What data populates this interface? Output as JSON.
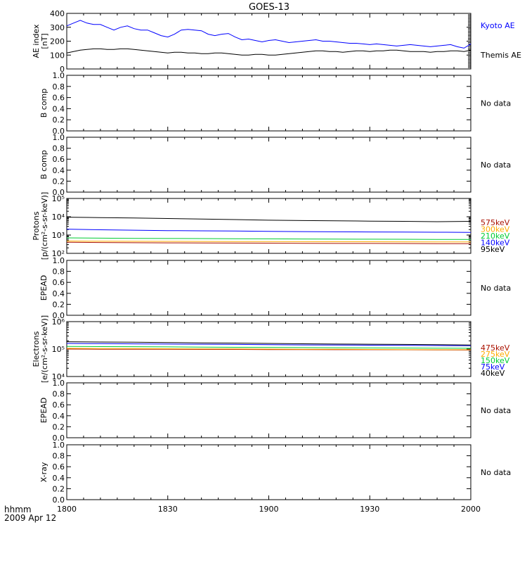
{
  "title": "GOES-13",
  "footer": {
    "units_label": "hhmm",
    "date_label": "2009 Apr 12"
  },
  "time_axis": {
    "ticks": [
      "1800",
      "1830",
      "1900",
      "1930",
      "2000"
    ],
    "range_minutes": [
      0,
      120
    ]
  },
  "no_data_text": "No data",
  "chart_data": [
    {
      "type": "line",
      "ylabel": [
        "AE index",
        "[nT]"
      ],
      "ylim": [
        0,
        400
      ],
      "y_ticks": [
        "0",
        "100",
        "200",
        "300",
        "400"
      ],
      "x_minutes": [
        0,
        2,
        4,
        6,
        8,
        10,
        12,
        14,
        16,
        18,
        20,
        22,
        24,
        26,
        28,
        30,
        32,
        34,
        36,
        38,
        40,
        42,
        44,
        46,
        48,
        50,
        52,
        54,
        56,
        58,
        60,
        62,
        64,
        66,
        68,
        70,
        72,
        74,
        76,
        78,
        80,
        82,
        84,
        86,
        88,
        90,
        92,
        94,
        96,
        98,
        100,
        102,
        104,
        106,
        108,
        110,
        112,
        114,
        116,
        118,
        120
      ],
      "series": [
        {
          "name": "Kyoto AE",
          "color": "#0000ff",
          "values": [
            310,
            330,
            350,
            330,
            320,
            320,
            300,
            280,
            300,
            310,
            290,
            280,
            280,
            260,
            240,
            230,
            250,
            280,
            285,
            280,
            275,
            250,
            240,
            250,
            255,
            230,
            210,
            215,
            205,
            195,
            205,
            210,
            200,
            190,
            195,
            200,
            205,
            210,
            200,
            200,
            195,
            190,
            185,
            185,
            180,
            175,
            180,
            175,
            170,
            165,
            170,
            175,
            170,
            165,
            160,
            165,
            170,
            175,
            160,
            150,
            180
          ]
        },
        {
          "name": "Themis AE",
          "color": "#000000",
          "values": [
            115,
            125,
            135,
            140,
            145,
            145,
            140,
            140,
            145,
            145,
            140,
            135,
            130,
            125,
            120,
            115,
            120,
            120,
            115,
            115,
            110,
            110,
            115,
            115,
            110,
            105,
            100,
            100,
            105,
            105,
            100,
            100,
            105,
            110,
            115,
            120,
            125,
            130,
            130,
            125,
            125,
            120,
            125,
            130,
            130,
            125,
            130,
            130,
            135,
            135,
            130,
            125,
            125,
            125,
            120,
            125,
            125,
            130,
            130,
            125,
            135
          ]
        }
      ]
    },
    {
      "type": "line",
      "ylabel": [
        "B comp"
      ],
      "ylim": [
        0,
        1
      ],
      "y_ticks": [
        "0.0",
        "0.2",
        "0.4",
        "0.6",
        "0.8",
        "1.0"
      ],
      "no_data": true
    },
    {
      "type": "line",
      "ylabel": [
        "B comp"
      ],
      "ylim": [
        0,
        1
      ],
      "y_ticks": [
        "0.0",
        "0.2",
        "0.4",
        "0.6",
        "0.8",
        "1.0"
      ],
      "no_data": true
    },
    {
      "type": "line",
      "ylabel": [
        "Protons",
        "[p/(cm²-s-sr-keV)]"
      ],
      "yscale": "log",
      "ylim": [
        100,
        100000
      ],
      "y_ticks": [
        "10²",
        "10³",
        "10⁴",
        "10⁵"
      ],
      "x_minutes": [
        0,
        10,
        20,
        30,
        40,
        50,
        60,
        70,
        80,
        90,
        100,
        110,
        120
      ],
      "series": [
        {
          "name": "575keV",
          "color": "#aa1100",
          "values": [
            400,
            390,
            380,
            375,
            370,
            365,
            360,
            355,
            350,
            348,
            345,
            340,
            340
          ]
        },
        {
          "name": "300keV",
          "color": "#ffaa00",
          "values": [
            470,
            460,
            455,
            450,
            445,
            440,
            438,
            435,
            432,
            430,
            428,
            425,
            425
          ]
        },
        {
          "name": "210keV",
          "color": "#00cc33",
          "values": [
            700,
            680,
            660,
            650,
            640,
            630,
            620,
            610,
            600,
            595,
            590,
            580,
            580
          ]
        },
        {
          "name": "140keV",
          "color": "#0000ff",
          "values": [
            2100,
            1950,
            1850,
            1750,
            1700,
            1650,
            1600,
            1550,
            1500,
            1480,
            1450,
            1420,
            1400
          ]
        },
        {
          "name": "95keV",
          "color": "#000000",
          "values": [
            9500,
            9000,
            8500,
            8000,
            7500,
            7000,
            6500,
            6200,
            6000,
            5800,
            5600,
            5400,
            5600
          ]
        }
      ]
    },
    {
      "type": "line",
      "ylabel": [
        "EPEAD"
      ],
      "ylim": [
        0,
        1
      ],
      "y_ticks": [
        "0.0",
        "0.2",
        "0.4",
        "0.6",
        "0.8",
        "1.0"
      ],
      "no_data": true
    },
    {
      "type": "line",
      "ylabel": [
        "Electrons",
        "[e/(cm²-s-sr-keV)]"
      ],
      "yscale": "log",
      "ylim": [
        10000,
        1000000
      ],
      "y_ticks": [
        "10⁴",
        "10⁵",
        "10⁶"
      ],
      "x_minutes": [
        0,
        10,
        20,
        30,
        40,
        50,
        60,
        70,
        80,
        90,
        100,
        110,
        120
      ],
      "series": [
        {
          "name": "475keV",
          "color": "#aa1100",
          "values": [
            100000,
            99000,
            99000,
            98000,
            97000,
            97000,
            96000,
            96000,
            95000,
            95000,
            94000,
            93000,
            92000
          ]
        },
        {
          "name": "275keV",
          "color": "#ffaa00",
          "values": [
            106000,
            105000,
            104000,
            103000,
            102000,
            101000,
            100000,
            99000,
            98000,
            97000,
            96000,
            95000,
            95000
          ]
        },
        {
          "name": "150keV",
          "color": "#00cc33",
          "values": [
            125000,
            123000,
            122000,
            120000,
            118000,
            116000,
            115000,
            113000,
            112000,
            110000,
            109000,
            108000,
            107000
          ]
        },
        {
          "name": "75keV",
          "color": "#0000ff",
          "values": [
            160000,
            158000,
            155000,
            152000,
            150000,
            148000,
            145000,
            142000,
            140000,
            138000,
            136000,
            134000,
            132000
          ]
        },
        {
          "name": "40keV",
          "color": "#000000",
          "values": [
            185000,
            180000,
            178000,
            172000,
            168000,
            165000,
            160000,
            156000,
            152000,
            150000,
            148000,
            145000,
            140000
          ]
        }
      ]
    },
    {
      "type": "line",
      "ylabel": [
        "EPEAD"
      ],
      "ylim": [
        0,
        1
      ],
      "y_ticks": [
        "0.0",
        "0.2",
        "0.4",
        "0.6",
        "0.8",
        "1.0"
      ],
      "no_data": true
    },
    {
      "type": "line",
      "ylabel": [
        "X-ray"
      ],
      "ylim": [
        0,
        1
      ],
      "y_ticks": [
        "0.0",
        "0.2",
        "0.4",
        "0.6",
        "0.8",
        "1.0"
      ],
      "no_data": true
    }
  ]
}
